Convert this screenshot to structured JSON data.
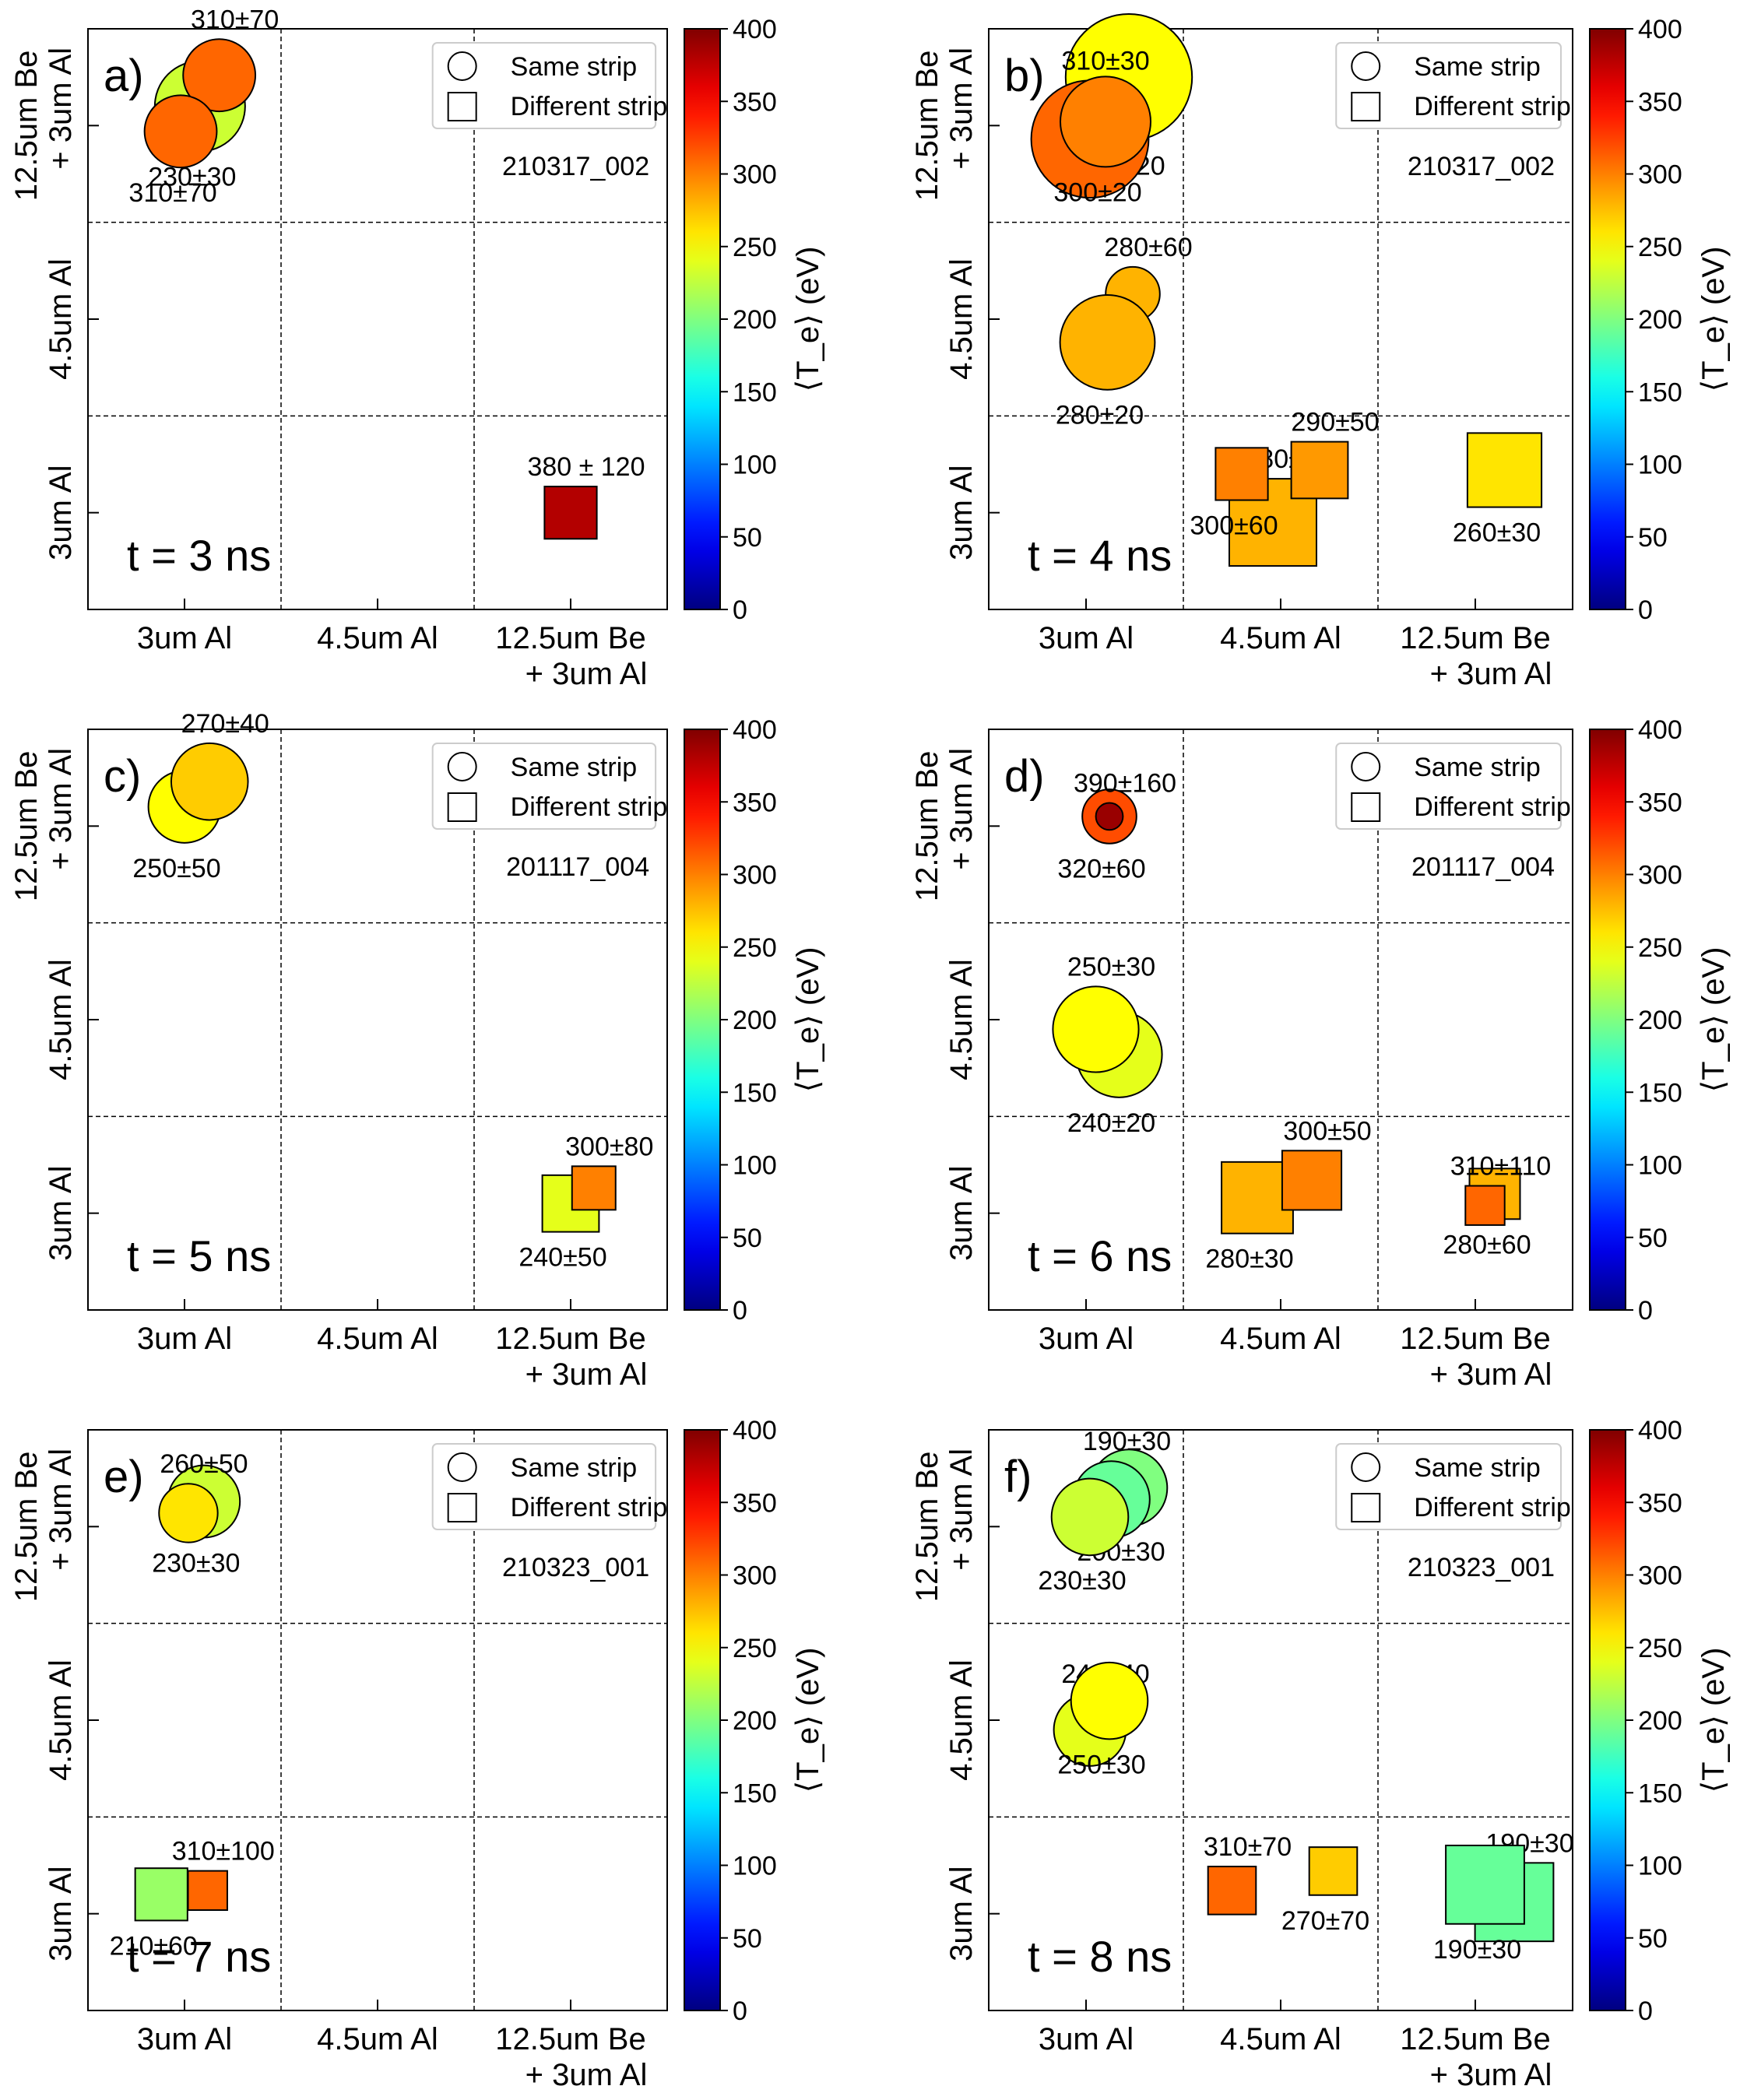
{
  "colorbar": {
    "label": "⟨T_e⟩ (eV)",
    "ticks": [
      "0",
      "50",
      "100",
      "150",
      "200",
      "250",
      "300",
      "350",
      "400"
    ],
    "min": 0,
    "max": 400,
    "colormap": "jet"
  },
  "legend": {
    "circle_label": "Same strip",
    "square_label": "Different strip"
  },
  "axes": {
    "x_ticks": [
      [
        "3um Al"
      ],
      [
        "4.5um Al"
      ],
      [
        "12.5um Be",
        "+ 3um Al"
      ]
    ],
    "y_ticks": [
      [
        "3um Al"
      ],
      [
        "4.5um Al"
      ],
      [
        "12.5um Be",
        "+ 3um Al"
      ]
    ]
  },
  "colors": {
    "marker_edge": "#000000",
    "grid": "#000000",
    "background": "#ffffff"
  },
  "chart_data": [
    {
      "type": "scatter",
      "panel": "a)",
      "shot_id": "210317_002",
      "time_label": "t  = 3 ns",
      "points": [
        {
          "shape": "circle",
          "size": 1.0,
          "value": 230,
          "label": "230±30",
          "x": 0.08,
          "y": 2.1
        },
        {
          "shape": "circle",
          "size": 0.8,
          "value": 310,
          "label": "310±70",
          "x": 0.18,
          "y": 2.26
        },
        {
          "shape": "circle",
          "size": 0.8,
          "value": 310,
          "label": "310±70",
          "x": -0.02,
          "y": 1.97
        },
        {
          "shape": "square",
          "size": 0.6,
          "value": 380,
          "label": "380 ± 120",
          "x": 2.0,
          "y": 0.0
        }
      ]
    },
    {
      "type": "scatter",
      "panel": "b)",
      "shot_id": "210317_002",
      "time_label": "t  = 4 ns",
      "points": [
        {
          "shape": "circle",
          "size": 1.4,
          "value": 250,
          "label": "250±20",
          "x": 0.22,
          "y": 2.25
        },
        {
          "shape": "circle",
          "size": 1.3,
          "value": 310,
          "label": "310±30",
          "x": 0.02,
          "y": 1.93
        },
        {
          "shape": "circle",
          "size": 1.0,
          "value": 300,
          "label": "300±20",
          "x": 0.1,
          "y": 2.02
        },
        {
          "shape": "circle",
          "size": 0.6,
          "value": 280,
          "label": "280±60",
          "x": 0.24,
          "y": 1.13
        },
        {
          "shape": "circle",
          "size": 1.05,
          "value": 280,
          "label": "280±20",
          "x": 0.11,
          "y": 0.88
        },
        {
          "shape": "square",
          "size": 1.0,
          "value": 280,
          "label": "280±20",
          "x": 0.96,
          "y": -0.05
        },
        {
          "shape": "square",
          "size": 0.6,
          "value": 300,
          "label": "300±60",
          "x": 0.8,
          "y": 0.2
        },
        {
          "shape": "square",
          "size": 0.65,
          "value": 290,
          "label": "290±50",
          "x": 1.2,
          "y": 0.22
        },
        {
          "shape": "square",
          "size": 0.85,
          "value": 260,
          "label": "260±30",
          "x": 2.15,
          "y": 0.22
        }
      ]
    },
    {
      "type": "scatter",
      "panel": "c)",
      "shot_id": "201117_004",
      "time_label": "t  = 5 ns",
      "points": [
        {
          "shape": "circle",
          "size": 0.8,
          "value": 250,
          "label": "250±50",
          "x": 0.0,
          "y": 2.1
        },
        {
          "shape": "circle",
          "size": 0.85,
          "value": 270,
          "label": "270±40",
          "x": 0.13,
          "y": 2.23
        },
        {
          "shape": "square",
          "size": 0.65,
          "value": 240,
          "label": "240±50",
          "x": 2.0,
          "y": 0.05
        },
        {
          "shape": "square",
          "size": 0.5,
          "value": 300,
          "label": "300±80",
          "x": 2.12,
          "y": 0.13
        }
      ]
    },
    {
      "type": "scatter",
      "panel": "d)",
      "shot_id": "201117_004",
      "time_label": "t  = 6 ns",
      "points": [
        {
          "shape": "circle",
          "size": 0.6,
          "value": 320,
          "label": "320±60",
          "x": 0.12,
          "y": 2.05
        },
        {
          "shape": "circle",
          "size": 0.3,
          "value": 390,
          "label": "390±160",
          "x": 0.12,
          "y": 2.05
        },
        {
          "shape": "circle",
          "size": 0.95,
          "value": 240,
          "label": "240±20",
          "x": 0.17,
          "y": 0.82
        },
        {
          "shape": "circle",
          "size": 0.95,
          "value": 250,
          "label": "250±30",
          "x": 0.05,
          "y": 0.95
        },
        {
          "shape": "square",
          "size": 0.82,
          "value": 280,
          "label": "280±30",
          "x": 0.88,
          "y": 0.08
        },
        {
          "shape": "square",
          "size": 0.68,
          "value": 300,
          "label": "300±50",
          "x": 1.16,
          "y": 0.17
        },
        {
          "shape": "square",
          "size": 0.58,
          "value": 280,
          "label": "280±60",
          "x": 2.1,
          "y": 0.1
        },
        {
          "shape": "square",
          "size": 0.45,
          "value": 310,
          "label": "310±110",
          "x": 2.05,
          "y": 0.04
        }
      ]
    },
    {
      "type": "scatter",
      "panel": "e)",
      "shot_id": "210323_001",
      "time_label": "t  = 7 ns",
      "points": [
        {
          "shape": "circle",
          "size": 0.8,
          "value": 230,
          "label": "230±30",
          "x": 0.1,
          "y": 2.13
        },
        {
          "shape": "circle",
          "size": 0.65,
          "value": 260,
          "label": "260±50",
          "x": 0.02,
          "y": 2.07
        },
        {
          "shape": "square",
          "size": 0.6,
          "value": 210,
          "label": "210±60",
          "x": -0.12,
          "y": 0.1
        },
        {
          "shape": "square",
          "size": 0.45,
          "value": 310,
          "label": "310±100",
          "x": 0.12,
          "y": 0.12
        }
      ]
    },
    {
      "type": "scatter",
      "panel": "f)",
      "shot_id": "210323_001",
      "time_label": "t  = 8 ns",
      "points": [
        {
          "shape": "circle",
          "size": 0.85,
          "value": 200,
          "label": "200±30",
          "x": 0.22,
          "y": 2.2
        },
        {
          "shape": "circle",
          "size": 0.85,
          "value": 190,
          "label": "190±30",
          "x": 0.13,
          "y": 2.14
        },
        {
          "shape": "circle",
          "size": 0.85,
          "value": 230,
          "label": "230±30",
          "x": 0.02,
          "y": 2.05
        },
        {
          "shape": "circle",
          "size": 0.8,
          "value": 240,
          "label": "240±40",
          "x": 0.02,
          "y": 0.95
        },
        {
          "shape": "circle",
          "size": 0.85,
          "value": 250,
          "label": "250±30",
          "x": 0.12,
          "y": 1.1
        },
        {
          "shape": "square",
          "size": 0.55,
          "value": 310,
          "label": "310±70",
          "x": 0.75,
          "y": 0.12
        },
        {
          "shape": "square",
          "size": 0.55,
          "value": 270,
          "label": "270±70",
          "x": 1.27,
          "y": 0.22
        },
        {
          "shape": "square",
          "size": 0.9,
          "value": 190,
          "label": "190±30",
          "x": 2.2,
          "y": 0.06
        },
        {
          "shape": "square",
          "size": 0.9,
          "value": 190,
          "label": "190±30",
          "x": 2.05,
          "y": 0.15
        }
      ]
    }
  ]
}
